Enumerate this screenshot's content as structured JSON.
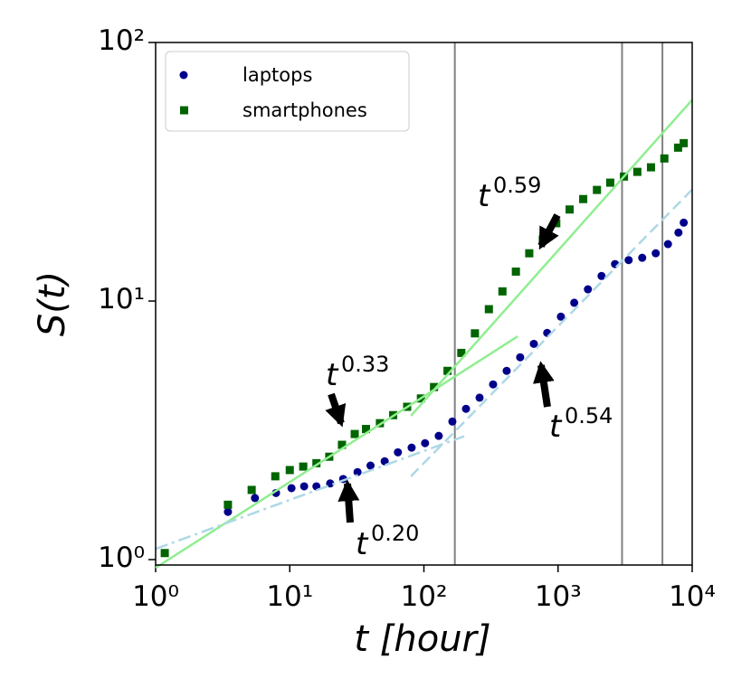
{
  "chart_data": {
    "type": "scatter",
    "xlabel": "t [hour]",
    "ylabel": "S(t)",
    "xscale": "log",
    "yscale": "log",
    "xlim": [
      1,
      10000
    ],
    "ylim": [
      0.953,
      100
    ],
    "xticks": [
      {
        "value": 1,
        "label": "10⁰"
      },
      {
        "value": 10,
        "label": "10¹"
      },
      {
        "value": 100,
        "label": "10²"
      },
      {
        "value": 1000,
        "label": "10³"
      },
      {
        "value": 10000,
        "label": "10⁴"
      }
    ],
    "yticks": [
      {
        "value": 1,
        "label": "10⁰"
      },
      {
        "value": 10,
        "label": "10¹"
      },
      {
        "value": 100,
        "label": "10²"
      }
    ],
    "legend": "upper left",
    "series": [
      {
        "name": "laptops",
        "color": "#00008b",
        "marker": "circle",
        "x": [
          3.46,
          5.5,
          7.9,
          10.3,
          12.8,
          15.8,
          20,
          25,
          32,
          40,
          51,
          64,
          81,
          102,
          129,
          163,
          206,
          260,
          328,
          414,
          522,
          660,
          830,
          1050,
          1320,
          1670,
          2110,
          2660,
          3360,
          4240,
          5350,
          6600,
          7900,
          8650
        ],
        "values": [
          1.53,
          1.73,
          1.81,
          1.89,
          1.92,
          1.92,
          1.97,
          2.05,
          2.18,
          2.31,
          2.4,
          2.6,
          2.71,
          2.82,
          3.01,
          3.42,
          3.83,
          4.23,
          4.76,
          5.37,
          6.06,
          6.83,
          7.53,
          8.7,
          9.85,
          11.1,
          12.5,
          13.9,
          14.4,
          14.7,
          15.3,
          16.6,
          18.4,
          20.1
        ]
      },
      {
        "name": "smartphones",
        "color": "#006400",
        "marker": "square",
        "x": [
          1.17,
          3.46,
          5.2,
          7.8,
          10,
          12.6,
          15.8,
          19.7,
          24.5,
          30.5,
          37,
          47,
          59,
          75,
          95,
          119,
          150,
          190,
          240,
          305,
          385,
          485,
          610,
          770,
          970,
          1220,
          1540,
          1950,
          2450,
          3100,
          3900,
          4930,
          6200,
          7850,
          8650
        ],
        "values": [
          1.06,
          1.63,
          1.86,
          2.1,
          2.22,
          2.29,
          2.36,
          2.5,
          2.78,
          3.06,
          3.2,
          3.37,
          3.62,
          3.9,
          4.2,
          4.65,
          5.37,
          6.3,
          7.5,
          9.3,
          10.9,
          13.0,
          15.3,
          17.3,
          20.0,
          22.6,
          24.8,
          26.9,
          28.7,
          30.3,
          31.6,
          32.9,
          35.6,
          39.2,
          40.8
        ]
      }
    ],
    "fit_lines": [
      {
        "color": "#90ee90",
        "style": "solid",
        "x": [
          1,
          500
        ],
        "values": [
          0.93,
          7.3
        ]
      },
      {
        "color": "#90ee90",
        "style": "solid",
        "x": [
          80,
          10000
        ],
        "values": [
          3.6,
          60
        ]
      },
      {
        "color": "#add8e6",
        "style": "dashdot",
        "x": [
          1,
          200
        ],
        "values": [
          1.1,
          3.0
        ]
      },
      {
        "color": "#add8e6",
        "style": "dashed",
        "x": [
          80,
          10000
        ],
        "values": [
          2.1,
          27
        ]
      }
    ],
    "vlines": {
      "color": "#808080",
      "x": [
        170,
        3000,
        6000
      ]
    },
    "annotations": [
      {
        "base": "t",
        "exponent": "0.59"
      },
      {
        "base": "t",
        "exponent": "0.33"
      },
      {
        "base": "t",
        "exponent": "0.54"
      },
      {
        "base": "t",
        "exponent": "0.20"
      }
    ]
  }
}
